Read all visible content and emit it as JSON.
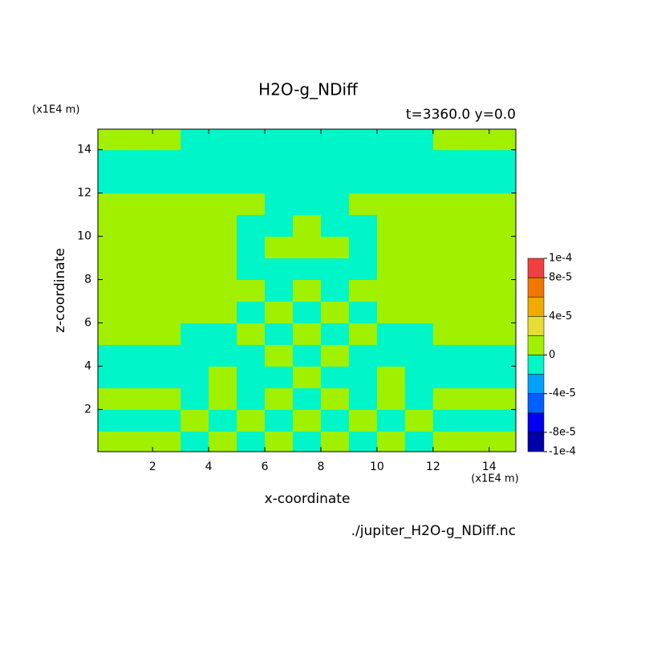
{
  "chart_data": {
    "type": "contour",
    "title": "H2O-g_NDiff",
    "subtitle": "t=3360.0 y=0.0",
    "x_label": "x-coordinate",
    "y_label": "z-coordinate",
    "x_unit": "(x1E4 m)",
    "y_unit": "(x1E4 m)",
    "source": "./jupiter_H2O-g_NDiff.nc",
    "xlim": [
      0.05,
      14.95
    ],
    "ylim": [
      0.05,
      14.95
    ],
    "xticks": [
      2,
      4,
      6,
      8,
      10,
      12,
      14
    ],
    "yticks": [
      2,
      4,
      6,
      8,
      10,
      12,
      14
    ],
    "x": [
      0.5,
      1.5,
      2.5,
      3.5,
      4.5,
      5.5,
      6.5,
      7.5,
      8.5,
      9.5,
      10.5,
      11.5,
      12.5,
      13.5,
      14.5
    ],
    "y": [
      0.5,
      1.5,
      2.5,
      3.5,
      4.5,
      5.5,
      6.5,
      7.5,
      8.5,
      9.5,
      10.5,
      11.5,
      12.5,
      13.5,
      14.5
    ],
    "z": [
      [
        1e-05,
        1e-05,
        1e-05,
        -1e-05,
        1e-05,
        -1e-05,
        1e-05,
        -1e-05,
        1e-05,
        -1e-05,
        1e-05,
        -1e-05,
        1e-05,
        1e-05,
        1e-05
      ],
      [
        -1e-05,
        -1e-05,
        -1e-05,
        1e-05,
        -1e-05,
        1e-05,
        -1e-05,
        1e-05,
        -1e-05,
        1e-05,
        -1e-05,
        1e-05,
        -1e-05,
        -1e-05,
        -1e-05
      ],
      [
        1e-05,
        1e-05,
        1e-05,
        -1e-05,
        1e-05,
        -1e-05,
        1e-05,
        -1e-05,
        1e-05,
        -1e-05,
        1e-05,
        -1e-05,
        1e-05,
        1e-05,
        1e-05
      ],
      [
        -1e-05,
        -1e-05,
        -1e-05,
        -1e-05,
        1e-05,
        -1e-05,
        -1e-05,
        1e-05,
        -1e-05,
        -1e-05,
        1e-05,
        -1e-05,
        -1e-05,
        -1e-05,
        -1e-05
      ],
      [
        -1e-05,
        -1e-05,
        -1e-05,
        -1e-05,
        -1e-05,
        -1e-05,
        1e-05,
        -1e-05,
        1e-05,
        -1e-05,
        -1e-05,
        -1e-05,
        -1e-05,
        -1e-05,
        -1e-05
      ],
      [
        1e-05,
        1e-05,
        1e-05,
        -1e-05,
        -1e-05,
        1e-05,
        -1e-05,
        1e-05,
        -1e-05,
        1e-05,
        -1e-05,
        -1e-05,
        1e-05,
        1e-05,
        1e-05
      ],
      [
        1e-05,
        1e-05,
        1e-05,
        1e-05,
        1e-05,
        -1e-05,
        1e-05,
        -1e-05,
        1e-05,
        -1e-05,
        1e-05,
        1e-05,
        1e-05,
        1e-05,
        1e-05
      ],
      [
        1e-05,
        1e-05,
        1e-05,
        1e-05,
        1e-05,
        1e-05,
        -1e-05,
        1e-05,
        -1e-05,
        1e-05,
        1e-05,
        1e-05,
        1e-05,
        1e-05,
        1e-05
      ],
      [
        1e-05,
        1e-05,
        1e-05,
        1e-05,
        1e-05,
        -1e-05,
        -1e-05,
        -1e-05,
        -1e-05,
        -1e-05,
        1e-05,
        1e-05,
        1e-05,
        1e-05,
        1e-05
      ],
      [
        1e-05,
        1e-05,
        1e-05,
        1e-05,
        1e-05,
        -1e-05,
        1e-05,
        1e-05,
        1e-05,
        -1e-05,
        1e-05,
        1e-05,
        1e-05,
        1e-05,
        1e-05
      ],
      [
        1e-05,
        1e-05,
        1e-05,
        1e-05,
        1e-05,
        -1e-05,
        -1e-05,
        1e-05,
        -1e-05,
        -1e-05,
        1e-05,
        1e-05,
        1e-05,
        1e-05,
        1e-05
      ],
      [
        1e-05,
        1e-05,
        1e-05,
        1e-05,
        1e-05,
        1e-05,
        -1e-05,
        -1e-05,
        -1e-05,
        1e-05,
        1e-05,
        1e-05,
        1e-05,
        1e-05,
        1e-05
      ],
      [
        -1e-05,
        -1e-05,
        -1e-05,
        -1e-05,
        -1e-05,
        -1e-05,
        -1e-05,
        -1e-05,
        -1e-05,
        -1e-05,
        -1e-05,
        -1e-05,
        -1e-05,
        -1e-05,
        -1e-05
      ],
      [
        -1e-05,
        -1e-05,
        -1e-05,
        -1e-05,
        -1e-05,
        -1e-05,
        -1e-05,
        -1e-05,
        -1e-05,
        -1e-05,
        -1e-05,
        -1e-05,
        -1e-05,
        -1e-05,
        -1e-05
      ],
      [
        1e-05,
        1e-05,
        1e-05,
        -1e-05,
        -1e-05,
        -1e-05,
        -1e-05,
        -1e-05,
        -1e-05,
        -1e-05,
        -1e-05,
        -1e-05,
        1e-05,
        1e-05,
        1e-05
      ]
    ],
    "colorbar": {
      "levels": [
        -0.0001,
        -8e-05,
        -6e-05,
        -4e-05,
        -2e-05,
        0,
        2e-05,
        4e-05,
        6e-05,
        8e-05,
        0.0001
      ],
      "colors": [
        "#0000a8",
        "#0000f0",
        "#0060ff",
        "#00a0ff",
        "#00f5c8",
        "#a0f000",
        "#e6dc32",
        "#f0aa00",
        "#f07800",
        "#f04040"
      ],
      "ticks": [
        {
          "value": 0.0001,
          "label": "1e-4"
        },
        {
          "value": 8e-05,
          "label": "8e-5"
        },
        {
          "value": 4e-05,
          "label": "4e-5"
        },
        0,
        {
          "value": -4e-05,
          "label": "-4e-5"
        },
        {
          "value": -8e-05,
          "label": "-8e-5"
        },
        {
          "value": -0.0001,
          "label": "-1e-4"
        }
      ]
    }
  }
}
